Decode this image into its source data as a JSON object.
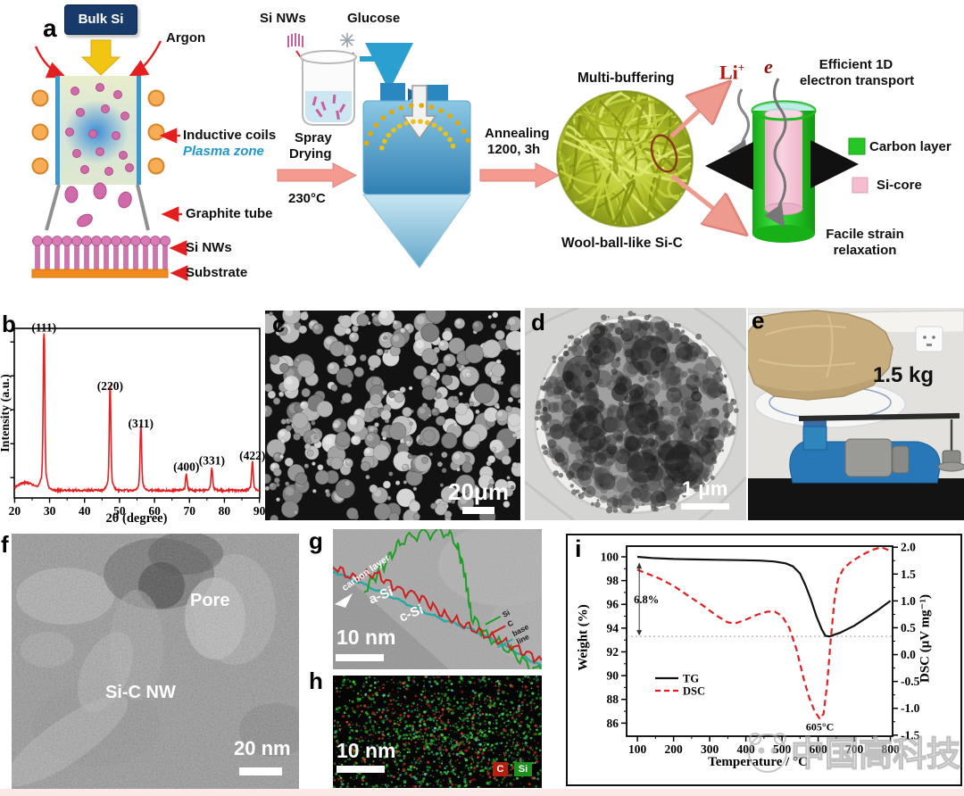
{
  "panel_a": {
    "label": "a",
    "bulk_si": "Bulk Si",
    "argon": "Argon",
    "inductive_coils": "Inductive coils",
    "plasma_zone": "Plasma zone",
    "graphite_tube": "Graphite tube",
    "si_nws": "Si NWs",
    "substrate": "Substrate",
    "si_nws_beaker": "Si NWs",
    "glucose": "Glucose",
    "spray_line1": "Spray",
    "spray_line2": "Drying",
    "spray_temp": "230°C",
    "anneal_line1": "Annealing",
    "anneal_line2": "1200, 3h",
    "multi_buffering": "Multi-buffering",
    "wool_ball_label": "Wool-ball-like Si-C",
    "li_label": "Li",
    "li_sup": "+",
    "e_label": "e",
    "efficient_line1": "Efficient 1D",
    "efficient_line2": "electron transport",
    "legend_carbon": "Carbon layer",
    "legend_si_core": "Si-core",
    "facile_line1": "Facile strain",
    "facile_line2": "relaxation"
  },
  "panel_b": {
    "label": "b"
  },
  "panel_c": {
    "label": "c",
    "scale_bar": "20μm"
  },
  "panel_d": {
    "label": "d",
    "scale_bar": "1 μm"
  },
  "panel_e": {
    "label": "e",
    "mass": "1.5 kg"
  },
  "panel_f": {
    "label": "f",
    "pore": "Pore",
    "si_c_nw": "Si-C NW",
    "scale_bar": "20 nm"
  },
  "panel_g": {
    "label": "g",
    "carbon_layer": "carbon layer",
    "a_si": "a-Si",
    "c_si": "c-Si",
    "scale_bar": "10 nm",
    "legend": [
      {
        "name": "Si",
        "color": "#1f9e28"
      },
      {
        "name": "C",
        "color": "#cc2020"
      },
      {
        "name": "base line",
        "color": "#27a9a4"
      }
    ],
    "line_scan": {
      "si": [
        [
          35,
          69
        ],
        [
          59,
          37
        ],
        [
          77,
          13
        ],
        [
          97,
          5
        ],
        [
          127,
          3
        ],
        [
          139,
          17
        ],
        [
          147,
          47
        ],
        [
          155,
          97
        ],
        [
          172,
          119
        ],
        [
          197,
          135
        ],
        [
          222,
          155
        ],
        [
          234,
          160
        ]
      ],
      "c": [
        [
          0,
          41
        ],
        [
          22,
          55
        ],
        [
          47,
          49
        ],
        [
          72,
          67
        ],
        [
          97,
          75
        ],
        [
          122,
          95
        ],
        [
          147,
          107
        ],
        [
          172,
          119
        ],
        [
          197,
          129
        ],
        [
          217,
          139
        ],
        [
          234,
          147
        ]
      ],
      "base": [
        [
          0,
          47
        ],
        [
          37,
          63
        ],
        [
          77,
          81
        ],
        [
          117,
          99
        ],
        [
          157,
          113
        ],
        [
          197,
          133
        ],
        [
          234,
          154
        ]
      ]
    }
  },
  "panel_h": {
    "label": "h",
    "scale_bar": "10 nm",
    "legend": [
      {
        "name": "C",
        "color": "#b51f10"
      },
      {
        "name": "Si",
        "color": "#1f8f1f"
      }
    ]
  },
  "panel_i": {
    "label": "i"
  },
  "watermark": {
    "text": "中国高科技"
  },
  "colors": {
    "accent_red": "#e31f1f",
    "salmon_arrow": "#f59a90",
    "bulk_si_box": "#173a6a",
    "coil_orange": "#f6ad55",
    "substrate_orange": "#ef8b1d",
    "nanowire_pink": "#d06aa8",
    "carbon_green": "#25c625",
    "si_core_pink": "#f4bdd0",
    "wool_green": "#aebc2a",
    "dryer_blue": "#2f7fb2",
    "plasma_zone_text": "#2196c9"
  },
  "chart_data": [
    {
      "id": "xrd",
      "type": "line",
      "title": "",
      "xlabel": "2θ (degree)",
      "ylabel": "Intensity (a.u.)",
      "xlim": [
        20,
        90
      ],
      "x_ticks": [
        20,
        30,
        40,
        50,
        60,
        70,
        80,
        90
      ],
      "color": "#e31f1f",
      "baseline": 0.045,
      "hump": {
        "center": 23.2,
        "sigma": 3.5,
        "height": 0.045
      },
      "peaks": [
        {
          "two_theta": 28.4,
          "hkl": "(111)",
          "height": 0.9
        },
        {
          "two_theta": 47.3,
          "hkl": "(220)",
          "height": 0.56
        },
        {
          "two_theta": 56.1,
          "hkl": "(311)",
          "height": 0.34
        },
        {
          "two_theta": 69.1,
          "hkl": "(400)",
          "height": 0.085
        },
        {
          "two_theta": 76.4,
          "hkl": "(331)",
          "height": 0.12
        },
        {
          "two_theta": 88.0,
          "hkl": "(422)",
          "height": 0.15
        }
      ]
    },
    {
      "id": "tg_dsc",
      "type": "line",
      "xlabel": "Temperature / °C",
      "ylabel_left": "Weight (%)",
      "ylabel_right": "DSC (μV mg⁻¹)",
      "xlim": [
        70,
        806
      ],
      "x_ticks": [
        100,
        200,
        300,
        400,
        500,
        600,
        700,
        800
      ],
      "ylim_left": [
        84.9,
        100.9
      ],
      "y_ticks_left": [
        86,
        88,
        90,
        92,
        94,
        96,
        98,
        100
      ],
      "ylim_right": [
        -1.52,
        2.02
      ],
      "y_ticks_right": [
        "-1.5",
        "-1.0",
        "-0.5",
        "0.0",
        "0.5",
        "1.0",
        "1.5",
        "2.0"
      ],
      "legend_position": "inside-left-bottom",
      "series": [
        {
          "name": "TG",
          "axis": "left",
          "color": "#111111",
          "dash": false,
          "points": [
            [
              100,
              100.0
            ],
            [
              140,
              99.9
            ],
            [
              200,
              99.82
            ],
            [
              260,
              99.78
            ],
            [
              320,
              99.75
            ],
            [
              380,
              99.72
            ],
            [
              440,
              99.68
            ],
            [
              480,
              99.6
            ],
            [
              510,
              99.45
            ],
            [
              530,
              99.2
            ],
            [
              550,
              98.6
            ],
            [
              565,
              97.6
            ],
            [
              580,
              96.4
            ],
            [
              595,
              95.0
            ],
            [
              610,
              93.9
            ],
            [
              620,
              93.35
            ],
            [
              632,
              93.3
            ],
            [
              645,
              93.45
            ],
            [
              660,
              93.6
            ],
            [
              680,
              93.9
            ],
            [
              700,
              94.2
            ],
            [
              730,
              94.8
            ],
            [
              760,
              95.4
            ],
            [
              800,
              96.3
            ]
          ]
        },
        {
          "name": "DSC",
          "axis": "right",
          "color": "#e31f1f",
          "dash": true,
          "points": [
            [
              100,
              1.58
            ],
            [
              130,
              1.5
            ],
            [
              160,
              1.42
            ],
            [
              200,
              1.28
            ],
            [
              240,
              1.1
            ],
            [
              280,
              0.92
            ],
            [
              320,
              0.72
            ],
            [
              350,
              0.6
            ],
            [
              370,
              0.58
            ],
            [
              400,
              0.65
            ],
            [
              430,
              0.74
            ],
            [
              460,
              0.8
            ],
            [
              480,
              0.8
            ],
            [
              500,
              0.72
            ],
            [
              520,
              0.5
            ],
            [
              540,
              0.1
            ],
            [
              560,
              -0.45
            ],
            [
              575,
              -0.8
            ],
            [
              590,
              -1.05
            ],
            [
              605,
              -1.2
            ],
            [
              615,
              -1.1
            ],
            [
              625,
              -0.55
            ],
            [
              635,
              0.3
            ],
            [
              645,
              1.0
            ],
            [
              655,
              1.4
            ],
            [
              670,
              1.6
            ],
            [
              690,
              1.72
            ],
            [
              720,
              1.85
            ],
            [
              750,
              1.95
            ],
            [
              775,
              2.0
            ],
            [
              800,
              1.93
            ]
          ]
        }
      ],
      "annotations": {
        "weight_loss": "6.8%",
        "weight_loss_level": 93.3,
        "dsc_peak_temp": "605°C"
      }
    }
  ]
}
